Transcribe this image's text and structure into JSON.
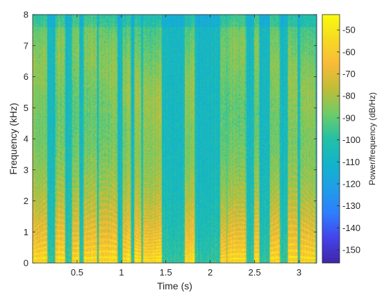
{
  "chart_data": {
    "type": "heatmap",
    "title": "",
    "xlabel": "Time (s)",
    "ylabel": "Frequency (kHz)",
    "colorbar_label": "Power/frequency (dB/Hz)",
    "xlim": [
      0,
      3.2
    ],
    "ylim": [
      0,
      8
    ],
    "clim": [
      -156,
      -43
    ],
    "x_ticks": [
      0.5,
      1,
      1.5,
      2,
      2.5,
      3
    ],
    "x_tick_labels": [
      "0.5",
      "1",
      "1.5",
      "2",
      "2.5",
      "3"
    ],
    "y_ticks": [
      0,
      1,
      2,
      3,
      4,
      5,
      6,
      7,
      8
    ],
    "y_tick_labels": [
      "0",
      "1",
      "2",
      "3",
      "4",
      "5",
      "6",
      "7",
      "8"
    ],
    "colorbar_ticks": [
      -50,
      -60,
      -70,
      -80,
      -90,
      -100,
      -110,
      -120,
      -130,
      -140,
      -150
    ],
    "colorbar_tick_labels": [
      "-50",
      "-60",
      "-70",
      "-80",
      "-90",
      "-100",
      "-110",
      "-120",
      "-130",
      "-140",
      "-150"
    ],
    "colormap": "parula",
    "colormap_stops": [
      "#3e26a8",
      "#4443ea",
      "#2f7efd",
      "#1f9ee8",
      "#12b4ca",
      "#24c0a6",
      "#6ecc68",
      "#bfbd38",
      "#f9ba38",
      "#f6da23",
      "#f9fb0e"
    ],
    "loud_segments_s": [
      [
        0.0,
        0.16
      ],
      [
        0.26,
        0.36
      ],
      [
        0.45,
        0.52
      ],
      [
        0.58,
        0.72
      ],
      [
        0.75,
        0.95
      ],
      [
        1.02,
        1.1
      ],
      [
        1.15,
        1.22
      ],
      [
        1.25,
        1.45
      ],
      [
        1.72,
        1.82
      ],
      [
        2.12,
        2.18
      ],
      [
        2.2,
        2.4
      ],
      [
        2.5,
        2.55
      ],
      [
        2.68,
        2.78
      ],
      [
        2.88,
        2.98
      ],
      [
        3.02,
        3.18
      ]
    ],
    "grid": false
  }
}
